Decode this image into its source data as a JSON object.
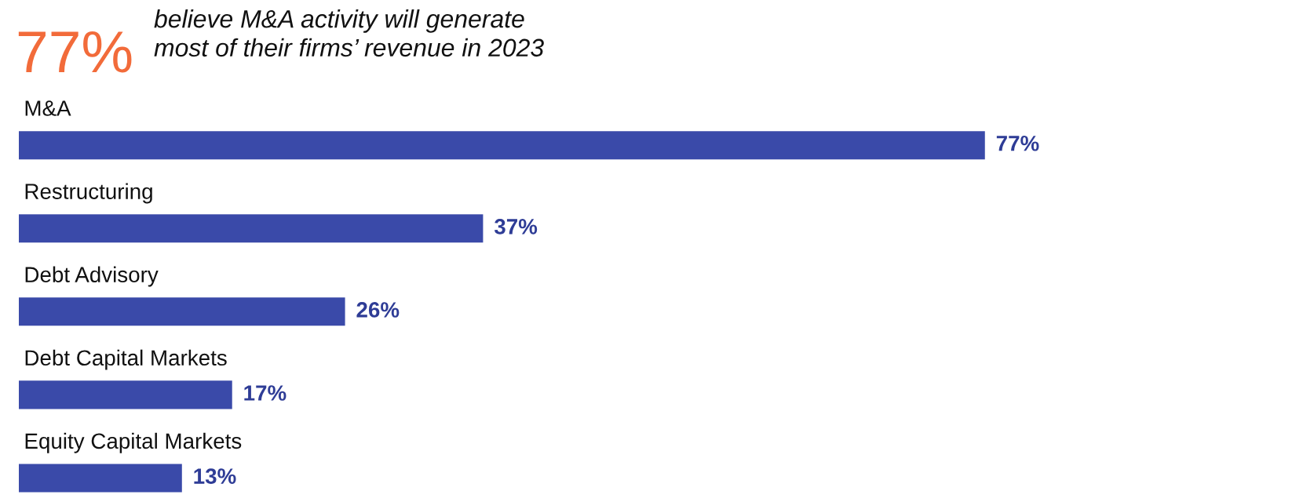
{
  "chart_data": {
    "type": "bar",
    "orientation": "horizontal",
    "title": "77%",
    "subtitle": "believe M&A activity will generate\nmost of their firms’ revenue in 2023",
    "categories": [
      "M&A",
      "Restructuring",
      "Debt Advisory",
      "Debt Capital Markets",
      "Equity Capital Markets"
    ],
    "values": [
      77,
      37,
      26,
      17,
      13
    ],
    "color": "#3a4aa9",
    "value_labels": [
      "77%",
      "37%",
      "26%",
      "17%",
      "13%"
    ],
    "tick_labels": false
  }
}
